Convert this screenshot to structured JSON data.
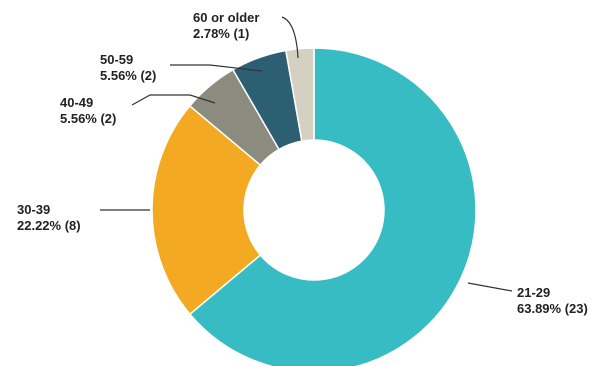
{
  "chart_data": {
    "type": "pie",
    "donut": true,
    "title": "",
    "categories": [
      "21-29",
      "30-39",
      "40-49",
      "50-59",
      "60 or older"
    ],
    "percentages": [
      63.89,
      22.22,
      5.56,
      5.56,
      2.78
    ],
    "counts": [
      23,
      8,
      2,
      2,
      1
    ],
    "colors": [
      "#36BCC2",
      "#F3AA22",
      "#8C8C7E",
      "#2D5F72",
      "#D4D0C2"
    ],
    "legend": "none",
    "slice_labels": [
      {
        "name": "21-29",
        "value": "63.89% (23)"
      },
      {
        "name": "30-39",
        "value": "22.22% (8)"
      },
      {
        "name": "40-49",
        "value": "5.56% (2)"
      },
      {
        "name": "50-59",
        "value": "5.56% (2)"
      },
      {
        "name": "60 or older",
        "value": "2.78% (1)"
      }
    ]
  }
}
